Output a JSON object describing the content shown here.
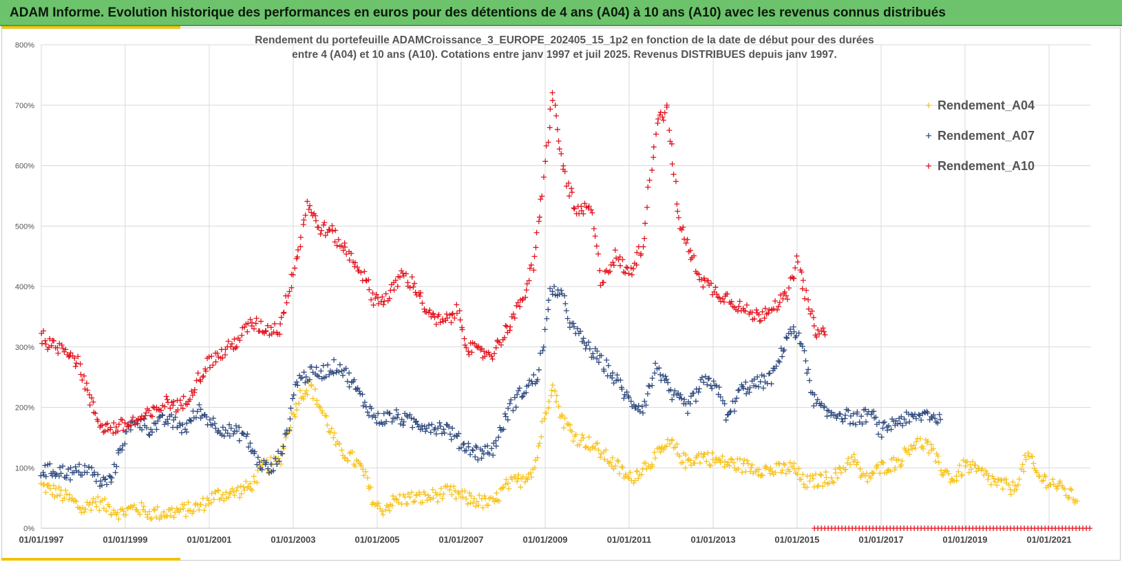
{
  "banner": {
    "title": "ADAM Informe. Evolution historique des performances en euros pour des détentions de 4 ans (A04) à 10 ans (A10) avec les revenus connus distribués"
  },
  "colors": {
    "banner": "#6cc36b",
    "accent": "#f2c200",
    "A04": "#f7c31d",
    "A07": "#2f4a7e",
    "A10": "#e3121c",
    "grid": "#d9d9d9"
  },
  "chart_data": {
    "type": "scatter",
    "marker": "plus",
    "title": [
      "Rendement du portefeuille ADAMCroissance_3_EUROPE_202405_15_1p2  en fonction de la date de début pour des durées",
      "entre 4 (A04) et 10 ans (A10). Cotations  entre janv 1997 et juil 2025. Revenus DISTRIBUES depuis janv 1997."
    ],
    "xlabel": "",
    "ylabel": "",
    "x_ticks": [
      "01/01/1997",
      "01/01/1999",
      "01/01/2001",
      "01/01/2003",
      "01/01/2005",
      "01/01/2007",
      "01/01/2009",
      "01/01/2011",
      "01/01/2013",
      "01/01/2015",
      "01/01/2017",
      "01/01/2019",
      "01/01/2021"
    ],
    "y_ticks": [
      "0%",
      "100%",
      "200%",
      "300%",
      "400%",
      "500%",
      "600%",
      "700%",
      "800%"
    ],
    "xlim": [
      "1997-01-01",
      "2022-01-01"
    ],
    "ylim": [
      0,
      800
    ],
    "grid": true,
    "legend": "right",
    "series": [
      {
        "name": "Rendement_A04",
        "color": "#f7c31d",
        "points": [
          [
            "1997-01-01",
            70
          ],
          [
            "1997-06-01",
            58
          ],
          [
            "1997-10-01",
            45
          ],
          [
            "1998-01-01",
            30
          ],
          [
            "1998-04-01",
            45
          ],
          [
            "1998-08-01",
            35
          ],
          [
            "1998-12-01",
            25
          ],
          [
            "1999-04-01",
            35
          ],
          [
            "1999-08-01",
            25
          ],
          [
            "2000-01-01",
            25
          ],
          [
            "2000-06-01",
            30
          ],
          [
            "2000-10-01",
            35
          ],
          [
            "2001-03-01",
            55
          ],
          [
            "2001-08-01",
            58
          ],
          [
            "2002-01-01",
            70
          ],
          [
            "2002-04-01",
            100
          ],
          [
            "2002-09-01",
            110
          ],
          [
            "2002-12-01",
            170
          ],
          [
            "2003-03-01",
            220
          ],
          [
            "2003-06-01",
            235
          ],
          [
            "2003-10-01",
            185
          ],
          [
            "2004-02-01",
            130
          ],
          [
            "2004-06-01",
            115
          ],
          [
            "2004-09-01",
            95
          ],
          [
            "2004-12-01",
            45
          ],
          [
            "2005-02-01",
            30
          ],
          [
            "2005-06-01",
            45
          ],
          [
            "2005-10-01",
            50
          ],
          [
            "2006-02-01",
            50
          ],
          [
            "2006-06-01",
            55
          ],
          [
            "2006-10-01",
            60
          ],
          [
            "2007-02-01",
            50
          ],
          [
            "2007-06-01",
            45
          ],
          [
            "2007-10-01",
            40
          ],
          [
            "2008-02-01",
            70
          ],
          [
            "2008-06-01",
            80
          ],
          [
            "2008-10-01",
            100
          ],
          [
            "2009-01-01",
            190
          ],
          [
            "2009-03-01",
            240
          ],
          [
            "2009-06-01",
            180
          ],
          [
            "2009-10-01",
            150
          ],
          [
            "2010-02-01",
            140
          ],
          [
            "2010-06-01",
            120
          ],
          [
            "2010-10-01",
            100
          ],
          [
            "2011-01-01",
            80
          ],
          [
            "2011-05-01",
            100
          ],
          [
            "2011-09-01",
            120
          ],
          [
            "2012-01-01",
            140
          ],
          [
            "2012-05-01",
            110
          ],
          [
            "2012-10-01",
            120
          ],
          [
            "2013-03-01",
            110
          ],
          [
            "2013-08-01",
            105
          ],
          [
            "2014-01-01",
            100
          ],
          [
            "2014-06-01",
            95
          ],
          [
            "2014-12-01",
            100
          ],
          [
            "2015-03-01",
            75
          ],
          [
            "2015-08-01",
            80
          ],
          [
            "2016-01-01",
            90
          ],
          [
            "2016-05-01",
            120
          ],
          [
            "2016-08-01",
            80
          ],
          [
            "2017-01-01",
            100
          ],
          [
            "2017-06-01",
            110
          ],
          [
            "2017-10-01",
            140
          ],
          [
            "2018-02-01",
            140
          ],
          [
            "2018-06-01",
            100
          ],
          [
            "2018-10-01",
            80
          ],
          [
            "2019-01-01",
            105
          ],
          [
            "2019-06-01",
            90
          ],
          [
            "2019-10-01",
            75
          ],
          [
            "2020-03-01",
            65
          ],
          [
            "2020-07-01",
            120
          ],
          [
            "2020-10-01",
            85
          ],
          [
            "2021-02-01",
            75
          ],
          [
            "2021-06-01",
            60
          ],
          [
            "2021-09-01",
            45
          ]
        ]
      },
      {
        "name": "Rendement_A07",
        "color": "#2f4a7e",
        "points": [
          [
            "1997-01-01",
            95
          ],
          [
            "1997-06-01",
            95
          ],
          [
            "1997-10-01",
            90
          ],
          [
            "1998-02-01",
            100
          ],
          [
            "1998-06-01",
            75
          ],
          [
            "1998-09-01",
            80
          ],
          [
            "1998-12-01",
            140
          ],
          [
            "1999-04-01",
            180
          ],
          [
            "1999-08-01",
            165
          ],
          [
            "2000-01-01",
            180
          ],
          [
            "2000-06-01",
            165
          ],
          [
            "2000-10-01",
            195
          ],
          [
            "2001-03-01",
            170
          ],
          [
            "2001-07-01",
            160
          ],
          [
            "2001-11-01",
            155
          ],
          [
            "2002-03-01",
            110
          ],
          [
            "2002-07-01",
            95
          ],
          [
            "2002-11-01",
            150
          ],
          [
            "2003-02-01",
            245
          ],
          [
            "2003-06-01",
            255
          ],
          [
            "2003-10-01",
            260
          ],
          [
            "2004-02-01",
            270
          ],
          [
            "2004-06-01",
            240
          ],
          [
            "2004-09-01",
            210
          ],
          [
            "2005-01-01",
            180
          ],
          [
            "2005-06-01",
            185
          ],
          [
            "2005-11-01",
            175
          ],
          [
            "2006-04-01",
            170
          ],
          [
            "2006-09-01",
            165
          ],
          [
            "2007-01-01",
            140
          ],
          [
            "2007-06-01",
            125
          ],
          [
            "2007-10-01",
            130
          ],
          [
            "2008-03-01",
            200
          ],
          [
            "2008-07-01",
            230
          ],
          [
            "2008-11-01",
            250
          ],
          [
            "2009-03-01",
            400
          ],
          [
            "2009-06-01",
            380
          ],
          [
            "2009-09-01",
            330
          ],
          [
            "2010-01-01",
            300
          ],
          [
            "2010-06-01",
            270
          ],
          [
            "2010-10-01",
            240
          ],
          [
            "2011-01-01",
            210
          ],
          [
            "2011-05-01",
            200
          ],
          [
            "2011-09-01",
            270
          ],
          [
            "2012-01-01",
            220
          ],
          [
            "2012-06-01",
            200
          ],
          [
            "2012-10-01",
            240
          ],
          [
            "2013-02-01",
            240
          ],
          [
            "2013-05-01",
            180
          ],
          [
            "2013-09-01",
            230
          ],
          [
            "2014-02-01",
            240
          ],
          [
            "2014-06-01",
            250
          ],
          [
            "2014-11-01",
            330
          ],
          [
            "2015-03-01",
            300
          ],
          [
            "2015-05-01",
            220
          ],
          [
            "2015-09-01",
            190
          ],
          [
            "2016-01-01",
            190
          ],
          [
            "2016-06-01",
            180
          ],
          [
            "2016-10-01",
            190
          ],
          [
            "2017-01-01",
            160
          ],
          [
            "2017-06-01",
            180
          ],
          [
            "2017-10-01",
            180
          ],
          [
            "2018-02-01",
            190
          ],
          [
            "2018-06-01",
            180
          ]
        ]
      },
      {
        "name": "Rendement_A10",
        "color": "#e3121c",
        "points": [
          [
            "1997-01-01",
            320
          ],
          [
            "1997-04-01",
            300
          ],
          [
            "1997-08-01",
            300
          ],
          [
            "1997-12-01",
            270
          ],
          [
            "1998-03-01",
            210
          ],
          [
            "1998-06-01",
            170
          ],
          [
            "1998-09-01",
            165
          ],
          [
            "1999-01-01",
            170
          ],
          [
            "1999-05-01",
            180
          ],
          [
            "1999-09-01",
            190
          ],
          [
            "2000-01-01",
            210
          ],
          [
            "2000-05-01",
            200
          ],
          [
            "2000-09-01",
            240
          ],
          [
            "2001-01-01",
            275
          ],
          [
            "2001-05-01",
            290
          ],
          [
            "2001-09-01",
            310
          ],
          [
            "2002-01-01",
            340
          ],
          [
            "2002-05-01",
            330
          ],
          [
            "2002-09-01",
            330
          ],
          [
            "2002-12-01",
            400
          ],
          [
            "2003-03-01",
            470
          ],
          [
            "2003-05-01",
            540
          ],
          [
            "2003-08-01",
            500
          ],
          [
            "2003-12-01",
            490
          ],
          [
            "2004-04-01",
            460
          ],
          [
            "2004-08-01",
            430
          ],
          [
            "2004-12-01",
            380
          ],
          [
            "2005-04-01",
            380
          ],
          [
            "2005-08-01",
            420
          ],
          [
            "2005-12-01",
            400
          ],
          [
            "2006-04-01",
            350
          ],
          [
            "2006-08-01",
            340
          ],
          [
            "2006-12-01",
            360
          ],
          [
            "2007-03-01",
            300
          ],
          [
            "2007-06-01",
            290
          ],
          [
            "2007-10-01",
            290
          ],
          [
            "2008-02-01",
            330
          ],
          [
            "2008-06-01",
            370
          ],
          [
            "2008-10-01",
            440
          ],
          [
            "2009-01-01",
            600
          ],
          [
            "2009-03-01",
            720
          ],
          [
            "2009-06-01",
            600
          ],
          [
            "2009-10-01",
            520
          ],
          [
            "2010-02-01",
            530
          ],
          [
            "2010-05-01",
            410
          ],
          [
            "2010-09-01",
            450
          ],
          [
            "2011-01-01",
            420
          ],
          [
            "2011-05-01",
            470
          ],
          [
            "2011-09-01",
            680
          ],
          [
            "2011-12-01",
            690
          ],
          [
            "2012-03-01",
            520
          ],
          [
            "2012-06-01",
            460
          ],
          [
            "2012-10-01",
            410
          ],
          [
            "2013-02-01",
            390
          ],
          [
            "2013-06-01",
            380
          ],
          [
            "2013-10-01",
            360
          ],
          [
            "2014-02-01",
            350
          ],
          [
            "2014-06-01",
            370
          ],
          [
            "2014-10-01",
            380
          ],
          [
            "2015-01-01",
            440
          ],
          [
            "2015-03-01",
            400
          ],
          [
            "2015-06-01",
            330
          ],
          [
            "2015-09-01",
            320
          ]
        ],
        "baseline": {
          "from": "2015-06-01",
          "to": "2022-01-01",
          "value": 0
        }
      }
    ]
  }
}
